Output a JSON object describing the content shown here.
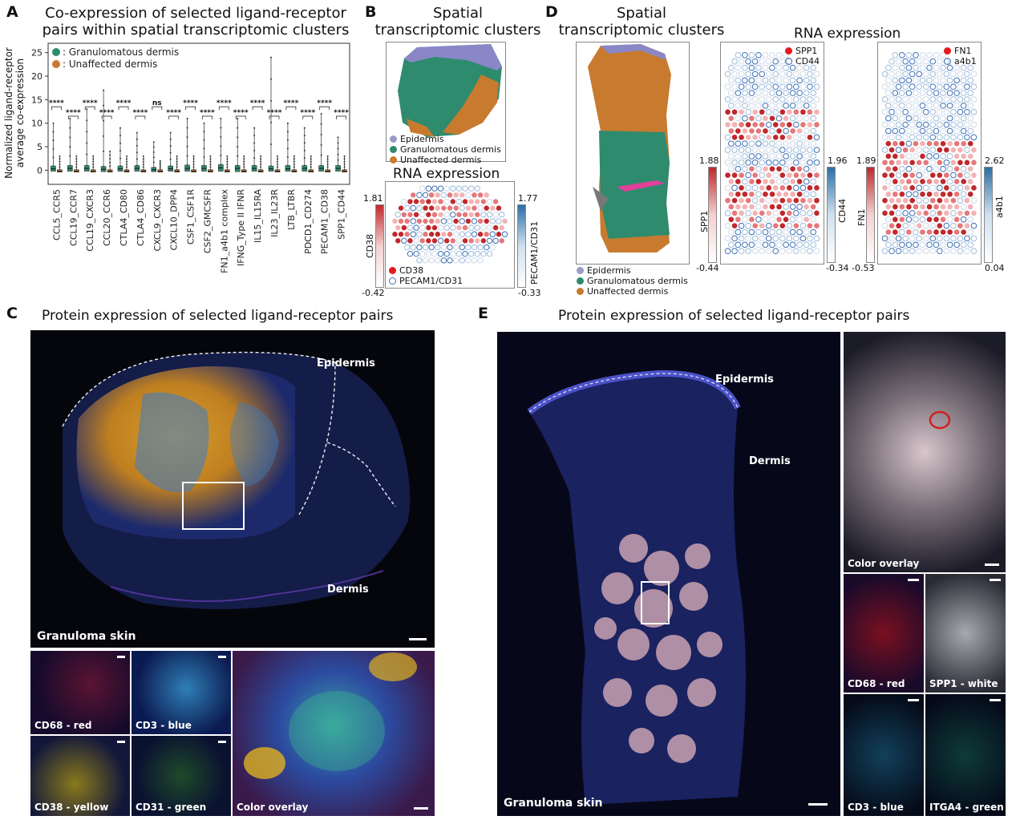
{
  "panels": {
    "A": {
      "letter": "A",
      "title_line1": "Co-expression of selected ligand-receptor",
      "title_line2": "pairs within spatial transcriptomic clusters",
      "legend": [
        {
          "label": ": Granulomatous dermis",
          "color": "#2e8b6e"
        },
        {
          "label": ": Unaffected dermis",
          "color": "#c87a2f"
        }
      ],
      "ylabel_line1": "Normalized ligand-receptor",
      "ylabel_line2": "average co-expression"
    },
    "B": {
      "letter": "B",
      "title_line1": "Spatial",
      "title_line2": "transcriptomic clusters",
      "legend": [
        {
          "label": "Epidermis",
          "color": "#9b9bc8"
        },
        {
          "label": "Granulomatous dermis",
          "color": "#2e8b6e"
        },
        {
          "label": "Unaffected dermis",
          "color": "#c87a2f"
        }
      ],
      "rna_title": "RNA expression",
      "rna_legend": [
        "CD38",
        "PECAM1/CD31"
      ],
      "cbar_left": {
        "label": "CD38",
        "max": "1.81",
        "min": "-0.42"
      },
      "cbar_right": {
        "label": "PECAM1/CD31",
        "max": "1.77",
        "min": "-0.33"
      }
    },
    "C": {
      "letter": "C",
      "title": "Protein expression of selected ligand-receptor pairs",
      "labels": {
        "epidermis": "Epidermis",
        "dermis": "Dermis",
        "tissue": "Granuloma skin"
      },
      "subpanels": [
        "CD68 - red",
        "CD3 - blue",
        "CD38 - yellow",
        "CD31 - green",
        "Color overlay"
      ]
    },
    "D": {
      "letter": "D",
      "title_line1": "Spatial",
      "title_line2": "transcriptomic clusters",
      "rna_title": "RNA expression",
      "legend": [
        {
          "label": "Epidermis",
          "color": "#9b9bc8"
        },
        {
          "label": "Granulomatous dermis",
          "color": "#2e8b6e"
        },
        {
          "label": "Unaffected dermis",
          "color": "#c87a2f"
        }
      ],
      "map1_legend": [
        "SPP1",
        "CD44"
      ],
      "map2_legend": [
        "FN1",
        "a4b1"
      ],
      "cbars": [
        {
          "label": "SPP1",
          "max": "1.88",
          "min": "-0.44"
        },
        {
          "label": "CD44",
          "max": "1.96",
          "min": "-0.34"
        },
        {
          "label": "FN1",
          "max": "1.89",
          "min": "-0.53"
        },
        {
          "label": "a4b1",
          "max": "2.62",
          "min": "0.04"
        }
      ]
    },
    "E": {
      "letter": "E",
      "title": "Protein expression of selected ligand-receptor pairs",
      "labels": {
        "epidermis": "Epidermis",
        "dermis": "Dermis",
        "tissue": "Granuloma skin"
      },
      "subpanels": [
        "Color overlay",
        "CD68 - red",
        "SPP1 - white",
        "CD3 - blue",
        "ITGA4 - green"
      ]
    }
  },
  "chart_data": {
    "type": "box",
    "title": "Co-expression of selected ligand-receptor pairs within spatial transcriptomic clusters",
    "ylabel": "Normalized ligand-receptor average co-expression",
    "ylim": [
      -3,
      27
    ],
    "yticks": [
      0,
      5,
      10,
      15,
      20,
      25
    ],
    "categories": [
      "CCL5_CCR5",
      "CCL19_CCR7",
      "CCL19_CXCR3",
      "CCL20_CCR6",
      "CTLA4_CD80",
      "CTLA4_CD86",
      "CXCL9_CXCR3",
      "CXCL10_DPP4",
      "CSF1_CSF1R",
      "CSF2_GMCSFR",
      "FN1_a4b1 complex",
      "IFNG_Type II IFNR",
      "IL15_IL15RA",
      "IL23_IL23R",
      "LTB_LTBR",
      "PDCD1_CD274",
      "PECAM1_CD38",
      "SPP1_CD44"
    ],
    "significance": [
      "****",
      "****",
      "****",
      "****",
      "****",
      "****",
      "ns",
      "****",
      "****",
      "****",
      "****",
      "****",
      "****",
      "****",
      "****",
      "****",
      "****",
      "****"
    ],
    "series": [
      {
        "name": "Granulomatous dermis",
        "color": "#2e8b6e",
        "q1": [
          -0.2,
          -0.2,
          -0.2,
          -0.3,
          -0.2,
          -0.2,
          -0.3,
          -0.2,
          -0.2,
          -0.2,
          -0.2,
          -0.3,
          -0.2,
          -0.2,
          -0.2,
          -0.2,
          -0.2,
          -0.2
        ],
        "median": [
          0.3,
          0.4,
          0.4,
          0.2,
          0.3,
          0.4,
          0.1,
          0.3,
          0.4,
          0.4,
          0.5,
          0.4,
          0.4,
          0.3,
          0.3,
          0.4,
          0.4,
          0.4
        ],
        "q3": [
          0.9,
          1.0,
          1.0,
          0.8,
          0.9,
          1.0,
          0.6,
          0.9,
          1.1,
          1.0,
          1.2,
          1.0,
          1.0,
          0.9,
          1.0,
          1.0,
          1.0,
          1.0
        ],
        "max": [
          10,
          11,
          13,
          17,
          9,
          8,
          6,
          8,
          11,
          10,
          11,
          11,
          9,
          24,
          10,
          9,
          12,
          7
        ]
      },
      {
        "name": "Unaffected dermis",
        "color": "#c87a2f",
        "q1": [
          -0.4,
          -0.4,
          -0.4,
          -0.4,
          -0.4,
          -0.4,
          -0.4,
          -0.4,
          -0.4,
          -0.4,
          -0.4,
          -0.4,
          -0.4,
          -0.4,
          -0.4,
          -0.4,
          -0.4,
          -0.4
        ],
        "median": [
          -0.2,
          -0.2,
          -0.2,
          -0.2,
          -0.2,
          -0.2,
          -0.2,
          -0.2,
          -0.2,
          -0.2,
          -0.2,
          -0.2,
          -0.2,
          -0.2,
          -0.2,
          -0.2,
          -0.2,
          -0.2
        ],
        "q3": [
          0.1,
          0.1,
          0.1,
          0.1,
          0.1,
          0.1,
          0.1,
          0.1,
          0.1,
          0.1,
          0.1,
          0.1,
          0.1,
          0.1,
          0.1,
          0.1,
          0.1,
          0.1
        ],
        "max": [
          3,
          3,
          3,
          4,
          3,
          3,
          2,
          3,
          3,
          3,
          3,
          3,
          3,
          3,
          3,
          3,
          3,
          3
        ]
      }
    ]
  }
}
